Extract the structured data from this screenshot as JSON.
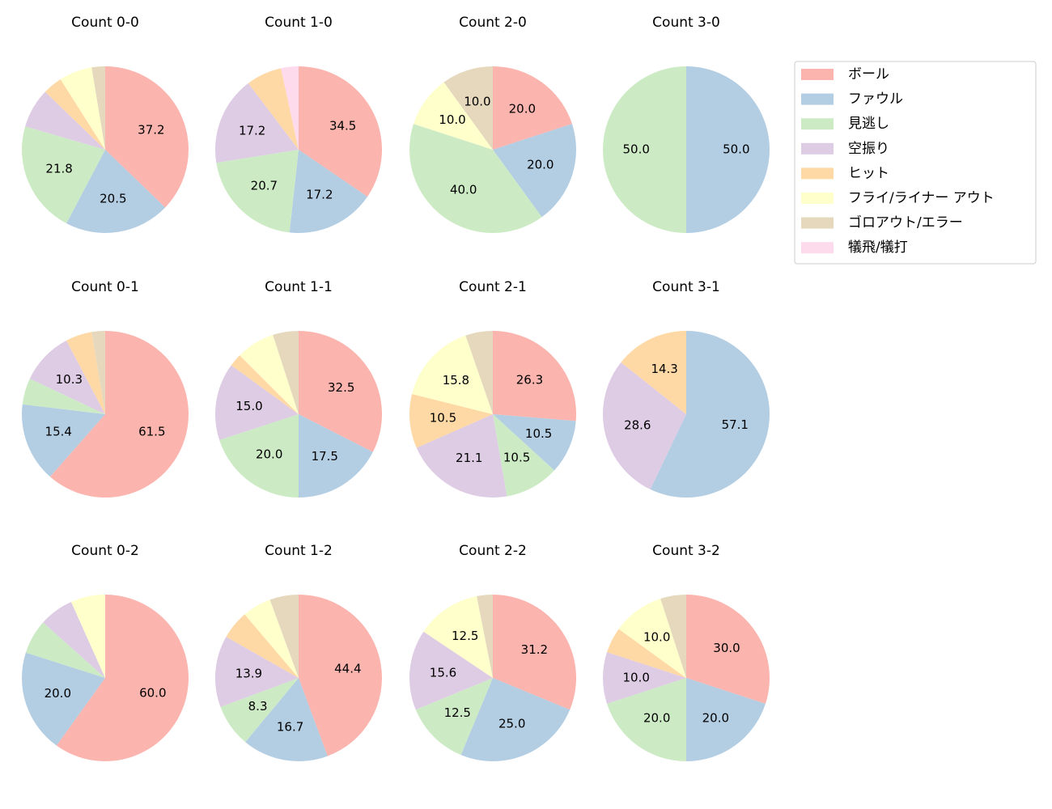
{
  "legend": {
    "labels": [
      "ボール",
      "ファウル",
      "見逃し",
      "空振り",
      "ヒット",
      "フライ/ライナー アウト",
      "ゴロアウト/エラー",
      "犠飛/犠打"
    ],
    "colors": [
      "#fbb4ae",
      "#b3cde3",
      "#ccebc5",
      "#decbe4",
      "#fed9a6",
      "#ffffcc",
      "#e5d8bd",
      "#fddaec"
    ]
  },
  "chart_data": [
    {
      "type": "pie",
      "title": "Count 0-0",
      "values": [
        37.2,
        20.5,
        21.8,
        7.7,
        3.8,
        6.4,
        2.6,
        0
      ],
      "value_labels": [
        "37.2",
        "20.5",
        "21.8",
        null,
        null,
        null,
        null,
        null
      ]
    },
    {
      "type": "pie",
      "title": "Count 1-0",
      "values": [
        34.5,
        17.2,
        20.7,
        17.2,
        6.9,
        0,
        0,
        3.4
      ],
      "value_labels": [
        "34.5",
        "17.2",
        "20.7",
        "17.2",
        null,
        null,
        null,
        null
      ]
    },
    {
      "type": "pie",
      "title": "Count 2-0",
      "values": [
        20,
        20,
        40,
        0,
        0,
        10,
        10,
        0
      ],
      "value_labels": [
        "20.0",
        "20.0",
        "40.0",
        null,
        null,
        "10.0",
        "10.0",
        null
      ]
    },
    {
      "type": "pie",
      "title": "Count 3-0",
      "values": [
        0,
        50,
        50,
        0,
        0,
        0,
        0,
        0
      ],
      "value_labels": [
        null,
        "50.0",
        "50.0",
        null,
        null,
        null,
        null,
        null
      ]
    },
    {
      "type": "pie",
      "title": "Count 0-1",
      "values": [
        61.5,
        15.4,
        5.1,
        10.3,
        5.1,
        0,
        2.6,
        0
      ],
      "value_labels": [
        "61.5",
        "15.4",
        null,
        "10.3",
        null,
        null,
        null,
        null
      ]
    },
    {
      "type": "pie",
      "title": "Count 1-1",
      "values": [
        32.5,
        17.5,
        20,
        15,
        2.5,
        7.5,
        5,
        0
      ],
      "value_labels": [
        "32.5",
        "17.5",
        "20.0",
        "15.0",
        null,
        null,
        null,
        null
      ]
    },
    {
      "type": "pie",
      "title": "Count 2-1",
      "values": [
        26.3,
        10.5,
        10.5,
        21.1,
        10.5,
        15.8,
        5.3,
        0
      ],
      "value_labels": [
        "26.3",
        "10.5",
        "10.5",
        "21.1",
        "10.5",
        "15.8",
        null,
        null
      ]
    },
    {
      "type": "pie",
      "title": "Count 3-1",
      "values": [
        0,
        57.1,
        0,
        28.6,
        14.3,
        0,
        0,
        0
      ],
      "value_labels": [
        null,
        "57.1",
        null,
        "28.6",
        "14.3",
        null,
        null,
        null
      ]
    },
    {
      "type": "pie",
      "title": "Count 0-2",
      "values": [
        60,
        20,
        6.7,
        6.7,
        0,
        6.7,
        0,
        0
      ],
      "value_labels": [
        "60.0",
        "20.0",
        null,
        null,
        null,
        null,
        null,
        null
      ]
    },
    {
      "type": "pie",
      "title": "Count 1-2",
      "values": [
        44.4,
        16.7,
        8.3,
        13.9,
        5.6,
        5.6,
        5.6,
        0
      ],
      "value_labels": [
        "44.4",
        "16.7",
        "8.3",
        "13.9",
        null,
        null,
        null,
        null
      ]
    },
    {
      "type": "pie",
      "title": "Count 2-2",
      "values": [
        31.2,
        25,
        12.5,
        15.6,
        0,
        12.5,
        3.1,
        0
      ],
      "value_labels": [
        "31.2",
        "25.0",
        "12.5",
        "15.6",
        null,
        "12.5",
        null,
        null
      ]
    },
    {
      "type": "pie",
      "title": "Count 3-2",
      "values": [
        30,
        20,
        20,
        10,
        5,
        10,
        5,
        0
      ],
      "value_labels": [
        "30.0",
        "20.0",
        "20.0",
        "10.0",
        null,
        "10.0",
        null,
        null
      ]
    }
  ]
}
